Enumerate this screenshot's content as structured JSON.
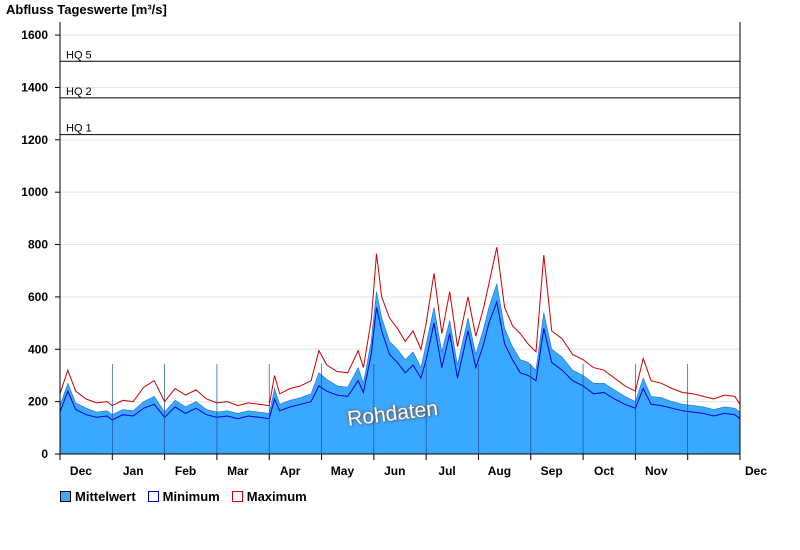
{
  "chart_data": {
    "type": "area",
    "title": "Abfluss Tageswerte [m³/s]",
    "ylim": [
      0,
      1650
    ],
    "y_ticks": [
      0,
      200,
      400,
      600,
      800,
      1000,
      1200,
      1400,
      1600
    ],
    "x_month_labels": [
      "Dec",
      "Jan",
      "Feb",
      "Mar",
      "Apr",
      "May",
      "Jun",
      "Jul",
      "Aug",
      "Sep",
      "Oct",
      "Nov",
      "Dec"
    ],
    "reference_lines": [
      {
        "label": "HQ 5",
        "value": 1500
      },
      {
        "label": "HQ 2",
        "value": 1360
      },
      {
        "label": "HQ 1",
        "value": 1220
      }
    ],
    "x_unit": "month_index",
    "series": [
      {
        "name": "Mittelwert",
        "color": "#3aa8ff",
        "points": [
          [
            0,
            185
          ],
          [
            0.15,
            270
          ],
          [
            0.3,
            195
          ],
          [
            0.5,
            175
          ],
          [
            0.7,
            160
          ],
          [
            0.9,
            165
          ],
          [
            1.0,
            150
          ],
          [
            1.2,
            170
          ],
          [
            1.4,
            165
          ],
          [
            1.6,
            200
          ],
          [
            1.8,
            220
          ],
          [
            2.0,
            160
          ],
          [
            2.2,
            205
          ],
          [
            2.4,
            180
          ],
          [
            2.6,
            200
          ],
          [
            2.8,
            170
          ],
          [
            3.0,
            160
          ],
          [
            3.2,
            165
          ],
          [
            3.4,
            155
          ],
          [
            3.6,
            165
          ],
          [
            3.8,
            160
          ],
          [
            4.0,
            155
          ],
          [
            4.1,
            250
          ],
          [
            4.2,
            190
          ],
          [
            4.4,
            205
          ],
          [
            4.6,
            215
          ],
          [
            4.8,
            230
          ],
          [
            4.95,
            310
          ],
          [
            5.1,
            285
          ],
          [
            5.3,
            260
          ],
          [
            5.5,
            255
          ],
          [
            5.7,
            330
          ],
          [
            5.8,
            270
          ],
          [
            5.95,
            430
          ],
          [
            6.05,
            620
          ],
          [
            6.15,
            520
          ],
          [
            6.3,
            430
          ],
          [
            6.45,
            400
          ],
          [
            6.6,
            360
          ],
          [
            6.75,
            390
          ],
          [
            6.9,
            330
          ],
          [
            7.0,
            420
          ],
          [
            7.15,
            560
          ],
          [
            7.3,
            390
          ],
          [
            7.45,
            510
          ],
          [
            7.6,
            340
          ],
          [
            7.8,
            520
          ],
          [
            7.95,
            380
          ],
          [
            8.1,
            480
          ],
          [
            8.2,
            560
          ],
          [
            8.35,
            650
          ],
          [
            8.5,
            480
          ],
          [
            8.65,
            410
          ],
          [
            8.8,
            360
          ],
          [
            8.95,
            350
          ],
          [
            9.1,
            320
          ],
          [
            9.25,
            540
          ],
          [
            9.4,
            400
          ],
          [
            9.6,
            370
          ],
          [
            9.8,
            320
          ],
          [
            10.0,
            300
          ],
          [
            10.2,
            270
          ],
          [
            10.4,
            270
          ],
          [
            10.6,
            245
          ],
          [
            10.8,
            220
          ],
          [
            11.0,
            200
          ],
          [
            11.15,
            290
          ],
          [
            11.3,
            220
          ],
          [
            11.5,
            215
          ],
          [
            11.7,
            200
          ],
          [
            11.9,
            190
          ],
          [
            12.1,
            185
          ],
          [
            12.3,
            180
          ],
          [
            12.5,
            170
          ],
          [
            12.7,
            180
          ],
          [
            12.9,
            175
          ],
          [
            13.0,
            160
          ]
        ]
      },
      {
        "name": "Minimum",
        "color": "#0000cc",
        "points": [
          [
            0,
            160
          ],
          [
            0.15,
            240
          ],
          [
            0.3,
            170
          ],
          [
            0.5,
            150
          ],
          [
            0.7,
            140
          ],
          [
            0.9,
            145
          ],
          [
            1.0,
            130
          ],
          [
            1.2,
            150
          ],
          [
            1.4,
            145
          ],
          [
            1.6,
            175
          ],
          [
            1.8,
            190
          ],
          [
            2.0,
            140
          ],
          [
            2.2,
            180
          ],
          [
            2.4,
            155
          ],
          [
            2.6,
            175
          ],
          [
            2.8,
            150
          ],
          [
            3.0,
            140
          ],
          [
            3.2,
            145
          ],
          [
            3.4,
            135
          ],
          [
            3.6,
            145
          ],
          [
            3.8,
            140
          ],
          [
            4.0,
            135
          ],
          [
            4.1,
            210
          ],
          [
            4.2,
            165
          ],
          [
            4.4,
            180
          ],
          [
            4.6,
            190
          ],
          [
            4.8,
            200
          ],
          [
            4.95,
            260
          ],
          [
            5.1,
            240
          ],
          [
            5.3,
            225
          ],
          [
            5.5,
            220
          ],
          [
            5.7,
            280
          ],
          [
            5.8,
            235
          ],
          [
            5.95,
            380
          ],
          [
            6.05,
            560
          ],
          [
            6.15,
            470
          ],
          [
            6.3,
            380
          ],
          [
            6.45,
            350
          ],
          [
            6.6,
            310
          ],
          [
            6.75,
            340
          ],
          [
            6.9,
            290
          ],
          [
            7.0,
            360
          ],
          [
            7.15,
            500
          ],
          [
            7.3,
            330
          ],
          [
            7.45,
            460
          ],
          [
            7.6,
            290
          ],
          [
            7.8,
            470
          ],
          [
            7.95,
            330
          ],
          [
            8.1,
            420
          ],
          [
            8.2,
            500
          ],
          [
            8.35,
            580
          ],
          [
            8.5,
            420
          ],
          [
            8.65,
            360
          ],
          [
            8.8,
            310
          ],
          [
            8.95,
            300
          ],
          [
            9.1,
            280
          ],
          [
            9.25,
            480
          ],
          [
            9.4,
            350
          ],
          [
            9.6,
            320
          ],
          [
            9.8,
            280
          ],
          [
            10.0,
            260
          ],
          [
            10.2,
            230
          ],
          [
            10.4,
            235
          ],
          [
            10.6,
            210
          ],
          [
            10.8,
            190
          ],
          [
            11.0,
            175
          ],
          [
            11.15,
            250
          ],
          [
            11.3,
            190
          ],
          [
            11.5,
            185
          ],
          [
            11.7,
            175
          ],
          [
            11.9,
            165
          ],
          [
            12.1,
            160
          ],
          [
            12.3,
            155
          ],
          [
            12.5,
            145
          ],
          [
            12.7,
            155
          ],
          [
            12.9,
            150
          ],
          [
            13.0,
            135
          ]
        ]
      },
      {
        "name": "Maximum",
        "color": "#cc0000",
        "points": [
          [
            0,
            230
          ],
          [
            0.15,
            320
          ],
          [
            0.3,
            240
          ],
          [
            0.5,
            210
          ],
          [
            0.7,
            195
          ],
          [
            0.9,
            200
          ],
          [
            1.0,
            185
          ],
          [
            1.2,
            205
          ],
          [
            1.4,
            200
          ],
          [
            1.6,
            255
          ],
          [
            1.8,
            280
          ],
          [
            2.0,
            200
          ],
          [
            2.2,
            250
          ],
          [
            2.4,
            225
          ],
          [
            2.6,
            245
          ],
          [
            2.8,
            210
          ],
          [
            3.0,
            195
          ],
          [
            3.2,
            200
          ],
          [
            3.4,
            185
          ],
          [
            3.6,
            195
          ],
          [
            3.8,
            190
          ],
          [
            4.0,
            185
          ],
          [
            4.1,
            300
          ],
          [
            4.2,
            230
          ],
          [
            4.4,
            250
          ],
          [
            4.6,
            260
          ],
          [
            4.8,
            280
          ],
          [
            4.95,
            395
          ],
          [
            5.1,
            340
          ],
          [
            5.3,
            315
          ],
          [
            5.5,
            310
          ],
          [
            5.7,
            395
          ],
          [
            5.8,
            330
          ],
          [
            5.95,
            510
          ],
          [
            6.05,
            765
          ],
          [
            6.15,
            600
          ],
          [
            6.3,
            520
          ],
          [
            6.45,
            480
          ],
          [
            6.6,
            430
          ],
          [
            6.75,
            470
          ],
          [
            6.9,
            400
          ],
          [
            7.0,
            500
          ],
          [
            7.15,
            690
          ],
          [
            7.3,
            460
          ],
          [
            7.45,
            620
          ],
          [
            7.6,
            410
          ],
          [
            7.8,
            600
          ],
          [
            7.95,
            450
          ],
          [
            8.1,
            560
          ],
          [
            8.2,
            650
          ],
          [
            8.35,
            790
          ],
          [
            8.5,
            560
          ],
          [
            8.65,
            490
          ],
          [
            8.8,
            460
          ],
          [
            8.95,
            420
          ],
          [
            9.1,
            390
          ],
          [
            9.25,
            760
          ],
          [
            9.4,
            470
          ],
          [
            9.6,
            440
          ],
          [
            9.8,
            380
          ],
          [
            10.0,
            360
          ],
          [
            10.2,
            330
          ],
          [
            10.4,
            320
          ],
          [
            10.6,
            290
          ],
          [
            10.8,
            260
          ],
          [
            11.0,
            240
          ],
          [
            11.15,
            365
          ],
          [
            11.3,
            280
          ],
          [
            11.5,
            270
          ],
          [
            11.7,
            250
          ],
          [
            11.9,
            235
          ],
          [
            12.1,
            230
          ],
          [
            12.3,
            220
          ],
          [
            12.5,
            210
          ],
          [
            12.7,
            225
          ],
          [
            12.9,
            220
          ],
          [
            13.0,
            190
          ]
        ]
      }
    ]
  },
  "watermark": "Rohdaten",
  "legend": [
    {
      "label": "Mittelwert",
      "color": "#3aa8ff",
      "border": "#000000"
    },
    {
      "label": "Minimum",
      "color": "#ffffff",
      "border": "#0000cc"
    },
    {
      "label": "Maximum",
      "color": "#ffffff",
      "border": "#cc0000"
    }
  ]
}
